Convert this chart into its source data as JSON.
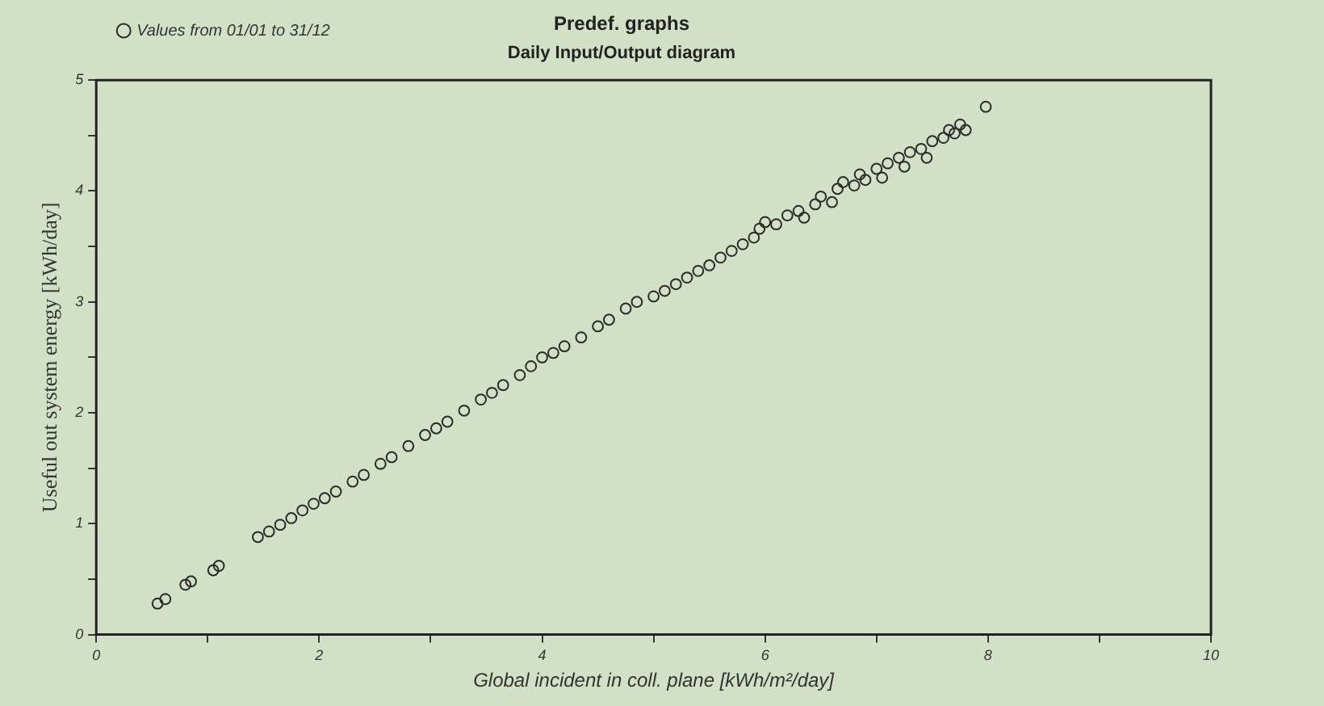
{
  "chart_data": {
    "type": "scatter",
    "title": "Predef. graphs",
    "subtitle": "Daily Input/Output diagram",
    "xlabel": "Global incident in coll. plane [kWh/m²/day]",
    "ylabel": "Useful out system energy [kWh/day]",
    "xlim": [
      0,
      10
    ],
    "ylim": [
      0,
      5
    ],
    "xticks": [
      0,
      {
        "value": 1,
        "label": null
      },
      2,
      {
        "value": 3,
        "label": null
      },
      4,
      {
        "value": 5,
        "label": null
      },
      6,
      {
        "value": 7,
        "label": null
      },
      8,
      {
        "value": 9,
        "label": null
      },
      10
    ],
    "yticks": [
      0,
      {
        "value": 0.5,
        "label": null
      },
      1,
      {
        "value": 1.5,
        "label": null
      },
      2,
      {
        "value": 2.5,
        "label": null
      },
      3,
      {
        "value": 3.5,
        "label": null
      },
      4,
      {
        "value": 4.5,
        "label": null
      },
      5
    ],
    "grid": false,
    "legend": "top left",
    "marker": "circle",
    "series": [
      {
        "name": "Values from 01/01 to 31/12",
        "color": "#2b2b2b",
        "x": [
          0.55,
          0.62,
          0.8,
          0.85,
          1.05,
          1.1,
          1.45,
          1.55,
          1.65,
          1.75,
          1.85,
          1.95,
          2.05,
          2.15,
          2.3,
          2.4,
          2.55,
          2.65,
          2.8,
          2.95,
          3.05,
          3.15,
          3.3,
          3.45,
          3.55,
          3.65,
          3.8,
          3.9,
          4.0,
          4.1,
          4.2,
          4.35,
          4.5,
          4.6,
          4.75,
          4.85,
          5.0,
          5.1,
          5.2,
          5.3,
          5.4,
          5.5,
          5.6,
          5.7,
          5.8,
          5.9,
          5.95,
          6.0,
          6.1,
          6.2,
          6.3,
          6.35,
          6.45,
          6.5,
          6.6,
          6.65,
          6.7,
          6.8,
          6.85,
          6.9,
          7.0,
          7.05,
          7.1,
          7.2,
          7.25,
          7.3,
          7.4,
          7.45,
          7.5,
          7.6,
          7.65,
          7.7,
          7.75,
          7.8,
          7.98
        ],
        "values": [
          0.28,
          0.32,
          0.45,
          0.48,
          0.58,
          0.62,
          0.88,
          0.93,
          0.99,
          1.05,
          1.12,
          1.18,
          1.23,
          1.29,
          1.38,
          1.44,
          1.54,
          1.6,
          1.7,
          1.8,
          1.86,
          1.92,
          2.02,
          2.12,
          2.18,
          2.25,
          2.34,
          2.42,
          2.5,
          2.54,
          2.6,
          2.68,
          2.78,
          2.84,
          2.94,
          3.0,
          3.05,
          3.1,
          3.16,
          3.22,
          3.28,
          3.33,
          3.4,
          3.46,
          3.52,
          3.58,
          3.66,
          3.72,
          3.7,
          3.78,
          3.82,
          3.76,
          3.88,
          3.95,
          3.9,
          4.02,
          4.08,
          4.05,
          4.15,
          4.1,
          4.2,
          4.12,
          4.25,
          4.3,
          4.22,
          4.35,
          4.38,
          4.3,
          4.45,
          4.48,
          4.55,
          4.52,
          4.6,
          4.55,
          4.76
        ]
      }
    ]
  }
}
